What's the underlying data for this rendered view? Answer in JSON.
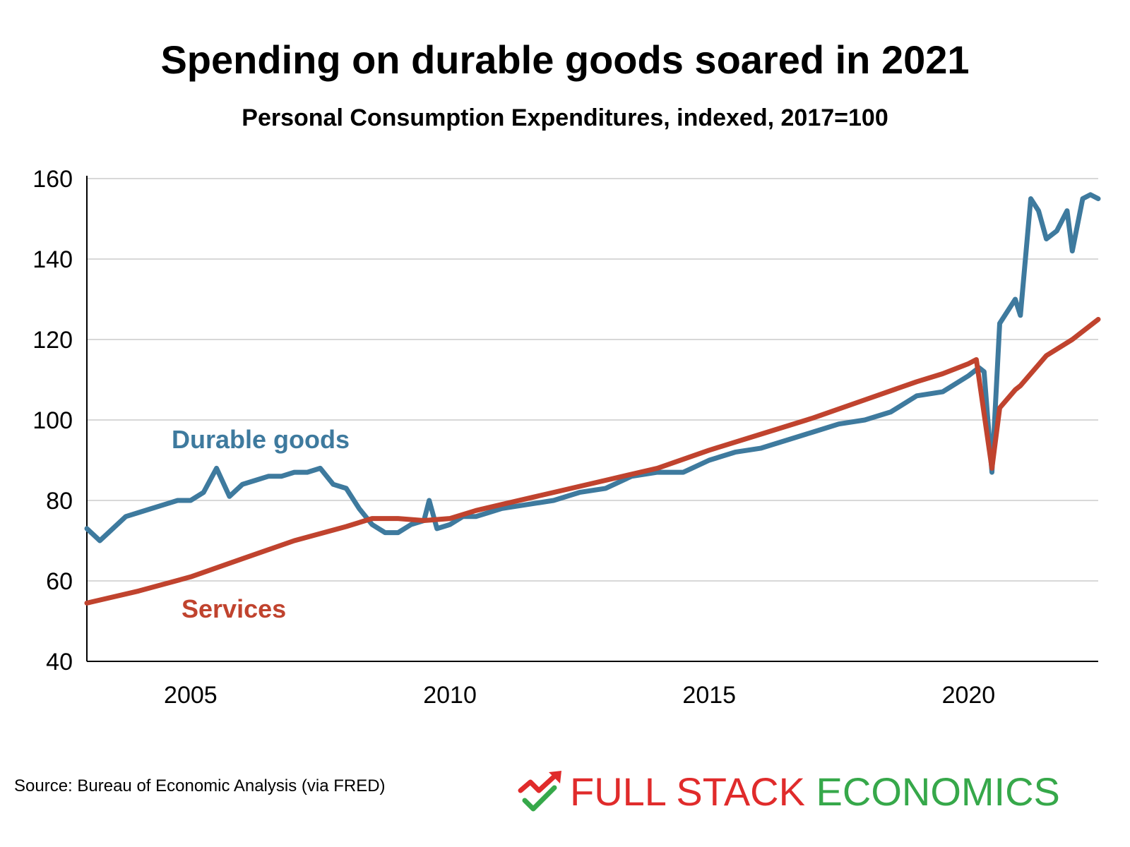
{
  "chart_data": {
    "type": "line",
    "title": "Spending on durable goods soared in 2021",
    "subtitle": "Personal Consumption Expenditures, indexed, 2017=100",
    "xlim": [
      2003.0,
      2022.5
    ],
    "ylim": [
      40,
      160
    ],
    "x_ticks": [
      "2005",
      "2010",
      "2015",
      "2020"
    ],
    "y_ticks": [
      "40",
      "60",
      "80",
      "100",
      "120",
      "140",
      "160"
    ],
    "grid": true,
    "series": [
      {
        "name": "Durable goods",
        "color": "#3e7a9e",
        "x": [
          2003.0,
          2003.25,
          2003.5,
          2003.75,
          2004.0,
          2004.25,
          2004.5,
          2004.75,
          2005.0,
          2005.25,
          2005.5,
          2005.75,
          2006.0,
          2006.25,
          2006.5,
          2006.75,
          2007.0,
          2007.25,
          2007.5,
          2007.75,
          2008.0,
          2008.25,
          2008.5,
          2008.75,
          2009.0,
          2009.25,
          2009.5,
          2009.6,
          2009.75,
          2010.0,
          2010.25,
          2010.5,
          2010.75,
          2011.0,
          2011.5,
          2012.0,
          2012.5,
          2013.0,
          2013.5,
          2014.0,
          2014.5,
          2015.0,
          2015.5,
          2016.0,
          2016.5,
          2017.0,
          2017.5,
          2018.0,
          2018.5,
          2019.0,
          2019.5,
          2020.0,
          2020.2,
          2020.3,
          2020.45,
          2020.6,
          2020.9,
          2021.0,
          2021.2,
          2021.35,
          2021.5,
          2021.7,
          2021.9,
          2022.0,
          2022.2,
          2022.35,
          2022.5
        ],
        "values": [
          73,
          70,
          73,
          76,
          77,
          78,
          79,
          80,
          80,
          82,
          88,
          81,
          84,
          85,
          86,
          86,
          87,
          87,
          88,
          84,
          83,
          78,
          74,
          72,
          72,
          74,
          75,
          80,
          73,
          74,
          76,
          76,
          77,
          78,
          79,
          80,
          82,
          83,
          86,
          87,
          87,
          90,
          92,
          93,
          95,
          97,
          99,
          100,
          102,
          106,
          107,
          111,
          113,
          112,
          87,
          124,
          130,
          126,
          155,
          152,
          145,
          147,
          152,
          142,
          155,
          156,
          155
        ]
      },
      {
        "name": "Services",
        "color": "#c0432e",
        "x": [
          2003.0,
          2004.0,
          2005.0,
          2006.0,
          2007.0,
          2008.0,
          2008.5,
          2009.0,
          2009.5,
          2010.0,
          2010.5,
          2011.0,
          2012.0,
          2013.0,
          2014.0,
          2015.0,
          2016.0,
          2017.0,
          2018.0,
          2019.0,
          2019.5,
          2020.0,
          2020.15,
          2020.45,
          2020.6,
          2020.9,
          2021.0,
          2021.5,
          2022.0,
          2022.5
        ],
        "values": [
          54.5,
          57.5,
          61,
          65.5,
          70,
          73.5,
          75.5,
          75.5,
          75,
          75.5,
          77.5,
          79,
          82,
          85,
          88,
          92.5,
          96.5,
          100.5,
          105,
          109.5,
          111.5,
          114,
          115,
          88,
          103,
          107.5,
          108.5,
          116,
          120,
          125
        ]
      }
    ],
    "annotations": [
      {
        "text": "Durable goods",
        "color": "#3e7a9e"
      },
      {
        "text": "Services",
        "color": "#c0432e"
      }
    ]
  },
  "source": "Source: Bureau of Economic Analysis (via FRED)",
  "logo": {
    "part1": "FULL STACK ",
    "part2": "ECONOMICS",
    "color1": "#e02b2b",
    "color2": "#36a84a",
    "icon": "trend-arrow-check-icon"
  }
}
